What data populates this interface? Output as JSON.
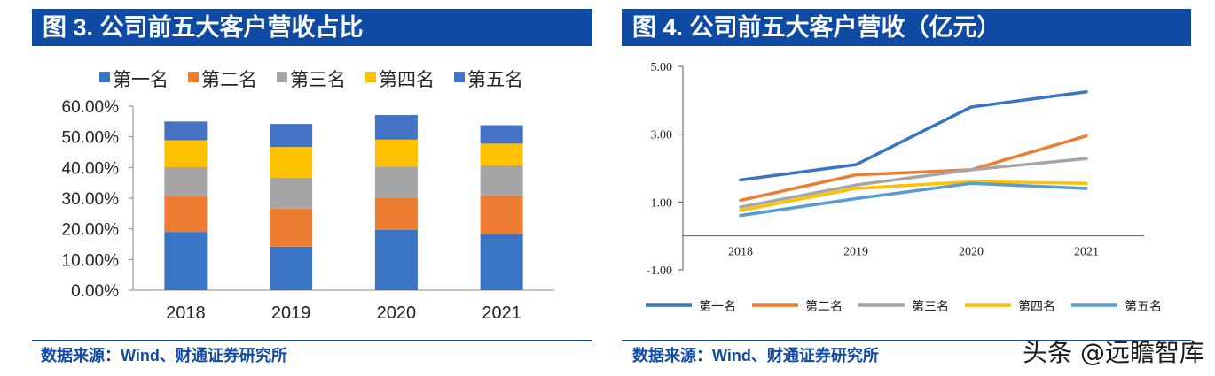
{
  "left": {
    "title": "图 3. 公司前五大客户营收占比",
    "source": "数据来源：Wind、财通证券研究所",
    "chart_data": {
      "type": "bar",
      "stacked": true,
      "categories": [
        "2018",
        "2019",
        "2020",
        "2021"
      ],
      "series": [
        {
          "name": "第一名",
          "color": "#3a74c5",
          "values": [
            19.0,
            14.2,
            19.7,
            18.3
          ]
        },
        {
          "name": "第二名",
          "color": "#ed7d31",
          "values": [
            11.8,
            12.4,
            10.3,
            12.6
          ]
        },
        {
          "name": "第三名",
          "color": "#a5a5a5",
          "values": [
            9.3,
            10.1,
            10.3,
            9.8
          ]
        },
        {
          "name": "第四名",
          "color": "#ffc000",
          "values": [
            8.8,
            10.0,
            8.8,
            7.1
          ]
        },
        {
          "name": "第五名",
          "color": "#4472c4",
          "values": [
            6.1,
            7.5,
            8.0,
            6.0
          ]
        }
      ],
      "ylim": [
        0,
        60
      ],
      "yticks": [
        "0.00%",
        "10.00%",
        "20.00%",
        "30.00%",
        "40.00%",
        "50.00%",
        "60.00%"
      ],
      "legend_position": "top"
    }
  },
  "right": {
    "title": "图 4. 公司前五大客户营收（亿元）",
    "source": "数据来源：Wind、财通证券研究所",
    "chart_data": {
      "type": "line",
      "x": [
        "2018",
        "2019",
        "2020",
        "2021"
      ],
      "series": [
        {
          "name": "第一名",
          "color": "#3a74c5",
          "values": [
            1.65,
            2.1,
            3.8,
            4.25
          ]
        },
        {
          "name": "第二名",
          "color": "#ed7d31",
          "values": [
            1.05,
            1.8,
            1.95,
            2.95
          ]
        },
        {
          "name": "第三名",
          "color": "#a5a5a5",
          "values": [
            0.85,
            1.5,
            1.95,
            2.28
          ]
        },
        {
          "name": "第四名",
          "color": "#ffc000",
          "values": [
            0.75,
            1.4,
            1.6,
            1.55
          ]
        },
        {
          "name": "第五名",
          "color": "#5b9bd5",
          "values": [
            0.6,
            1.1,
            1.55,
            1.4
          ]
        }
      ],
      "ylim": [
        -1,
        5
      ],
      "yticks": [
        "-1.00",
        "1.00",
        "3.00",
        "5.00"
      ],
      "ytick_values": [
        -1,
        1,
        3,
        5
      ],
      "legend_position": "bottom"
    }
  },
  "watermark": "头条 @远瞻智库"
}
